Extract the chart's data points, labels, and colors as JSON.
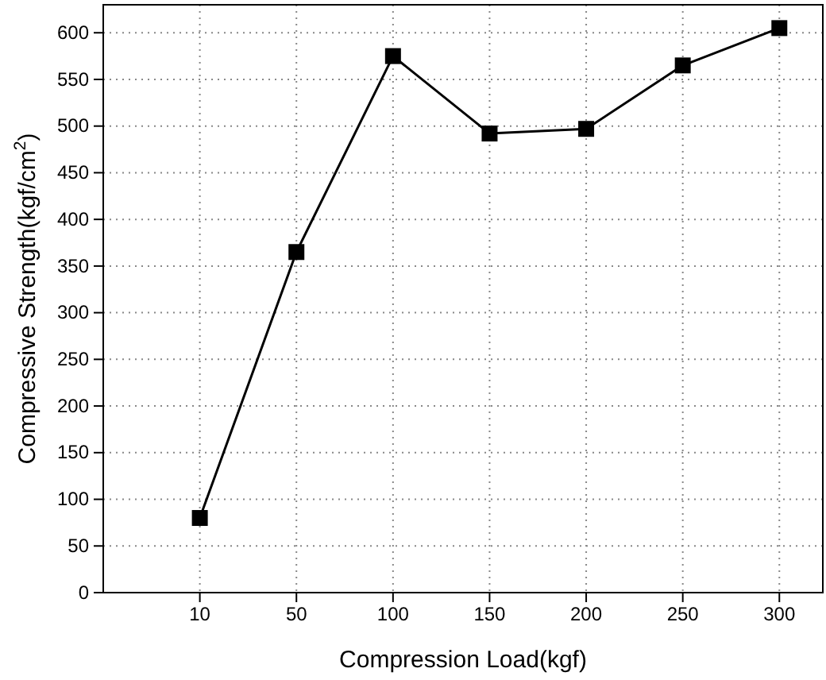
{
  "chart_data": {
    "type": "line",
    "xlabel": "Compression Load(kgf)",
    "ylabel": "Compressive Strength(kgf/cm$^{2}$)",
    "categories": [
      "10",
      "50",
      "100",
      "150",
      "200",
      "250",
      "300"
    ],
    "series": [
      {
        "color": "#000000",
        "values": [
          80,
          365,
          575,
          492,
          497,
          565,
          605
        ]
      }
    ],
    "ylim": [
      0,
      630
    ],
    "yticks": [
      0,
      50,
      100,
      150,
      200,
      250,
      300,
      350,
      400,
      450,
      500,
      550,
      600
    ],
    "grid": true,
    "marker": "square",
    "line_style": "solid"
  }
}
